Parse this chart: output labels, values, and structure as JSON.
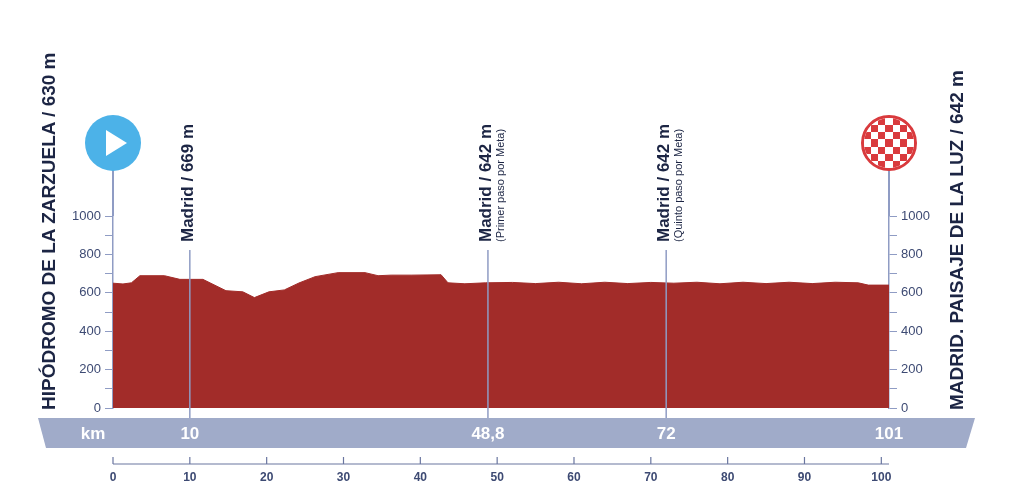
{
  "chart_data": {
    "type": "area",
    "x": [
      0,
      1.3,
      2.4,
      3.5,
      6.7,
      8.7,
      11.7,
      14.7,
      16.9,
      18.4,
      20.3,
      22.3,
      24.2,
      26.3,
      29.3,
      32.8,
      34.5,
      36.2,
      38.8,
      42.7,
      43.6,
      45.8,
      48.5,
      52,
      55,
      58,
      61,
      64,
      67,
      70,
      73,
      76,
      79,
      82,
      85,
      88,
      91,
      94,
      97,
      98.3,
      101
    ],
    "series": [
      {
        "color": "#a22c29",
        "values": [
          650,
          646,
          652,
          689,
          689,
          670,
          670,
          611,
          605,
          575,
          605,
          615,
          651,
          684,
          705,
          705,
          689,
          692,
          692,
          694,
          652,
          647,
          652,
          654,
          648,
          655,
          647,
          655,
          648,
          654,
          650,
          655,
          647,
          655,
          648,
          655,
          648,
          655,
          652,
          640,
          640
        ]
      }
    ],
    "xlim": [
      0,
      101
    ],
    "xticks": [
      0,
      10,
      20,
      30,
      40,
      50,
      60,
      70,
      80,
      90,
      100
    ],
    "ylim": [
      0,
      1000
    ],
    "yticks": [
      0,
      {
        "value": 100,
        "label": null
      },
      200,
      {
        "value": 300,
        "label": null
      },
      400,
      {
        "value": 500,
        "label": null
      },
      600,
      {
        "value": 700,
        "label": null
      },
      800,
      {
        "value": 900,
        "label": null
      },
      1000
    ],
    "y2lim": [
      0,
      1000
    ],
    "y2ticks": [
      0,
      {
        "value": 100,
        "label": null
      },
      200,
      {
        "value": 300,
        "label": null
      },
      400,
      {
        "value": 500,
        "label": null
      },
      600,
      {
        "value": 700,
        "label": null
      },
      800,
      {
        "value": 900,
        "label": null
      },
      1000
    ],
    "x2label": "km",
    "x2lim": [
      0,
      101
    ],
    "x2ticks": [
      {
        "value": 10,
        "label": "10"
      },
      {
        "value": 48.8,
        "label": "48,8"
      },
      {
        "value": 72,
        "label": "72"
      },
      {
        "value": 101,
        "label": "101"
      }
    ],
    "ref_lines": [
      {
        "axis": "x",
        "value": 10,
        "label": "Madrid / 669 m"
      },
      {
        "axis": "x",
        "value": 48.8,
        "label": "Madrid / 642 m\n(Primer paso por Meta)"
      },
      {
        "axis": "x",
        "value": 72,
        "label": "Madrid / 642 m\n(Quinto paso por Meta)"
      }
    ],
    "annotations": [
      "HIPÓDROMO DE LA ZARZUELA / 630 m",
      "MADRID. PAISAJE DE LA LUZ / 642 m"
    ],
    "grid": false,
    "legend": false
  }
}
